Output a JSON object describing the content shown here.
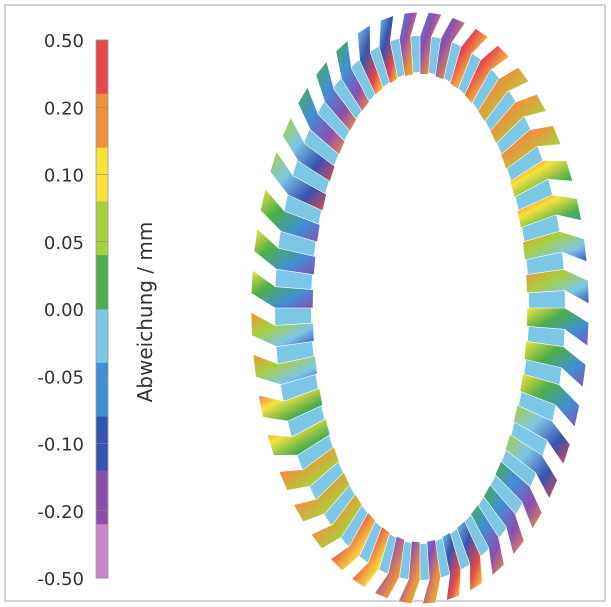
{
  "colorbar": {
    "label": "Abweichung / mm",
    "ticks": [
      {
        "value": 0.5,
        "label": "0.50"
      },
      {
        "value": 0.2,
        "label": "0.20"
      },
      {
        "value": 0.1,
        "label": "0.10"
      },
      {
        "value": 0.05,
        "label": "0.05"
      },
      {
        "value": 0,
        "label": "0.00"
      },
      {
        "value": -0.05,
        "label": "-0.05"
      },
      {
        "value": -0.1,
        "label": "-0.10"
      },
      {
        "value": -0.2,
        "label": "-0.20"
      },
      {
        "value": -0.5,
        "label": "-0.50"
      }
    ],
    "colors": [
      "#e8484a",
      "#f0923c",
      "#f7e33a",
      "#a8cf3c",
      "#4cae4c",
      "#7cc6e6",
      "#3f8fd6",
      "#3553b0",
      "#8b4fb0",
      "#c987c9"
    ]
  }
}
